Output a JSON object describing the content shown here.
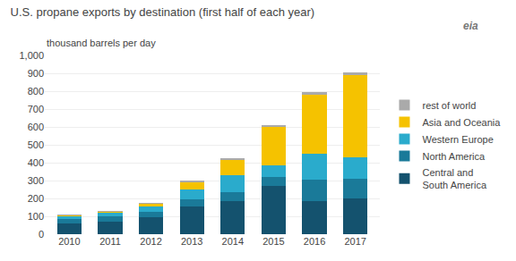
{
  "chart_data": {
    "type": "bar",
    "stacked": true,
    "title": "U.S. propane exports by destination (first half of each year)",
    "subtitle": "thousand barrels per day",
    "categories": [
      "2010",
      "2011",
      "2012",
      "2013",
      "2014",
      "2015",
      "2016",
      "2017"
    ],
    "series": [
      {
        "name": "Central and\nSouth America",
        "color": "#14526e",
        "values": [
          60,
          70,
          95,
          155,
          185,
          270,
          185,
          200
        ]
      },
      {
        "name": "North America",
        "color": "#1a7a99",
        "values": [
          25,
          30,
          30,
          40,
          50,
          50,
          120,
          110
        ]
      },
      {
        "name": "Western Europe",
        "color": "#2aabcc",
        "values": [
          15,
          20,
          30,
          55,
          95,
          65,
          145,
          120
        ]
      },
      {
        "name": "Asia and Oceania",
        "color": "#f5c200",
        "values": [
          5,
          5,
          15,
          40,
          85,
          215,
          330,
          460
        ]
      },
      {
        "name": "rest of world",
        "color": "#aaaaaa",
        "values": [
          5,
          5,
          5,
          10,
          10,
          10,
          15,
          15
        ]
      }
    ],
    "ylim": [
      0,
      1000
    ],
    "yticks": [
      0,
      100,
      200,
      300,
      400,
      500,
      600,
      700,
      800,
      900,
      {
        "value": 1000,
        "label": "1,000"
      }
    ],
    "grid": true,
    "legend": "right",
    "annotations": [
      "eia"
    ]
  }
}
